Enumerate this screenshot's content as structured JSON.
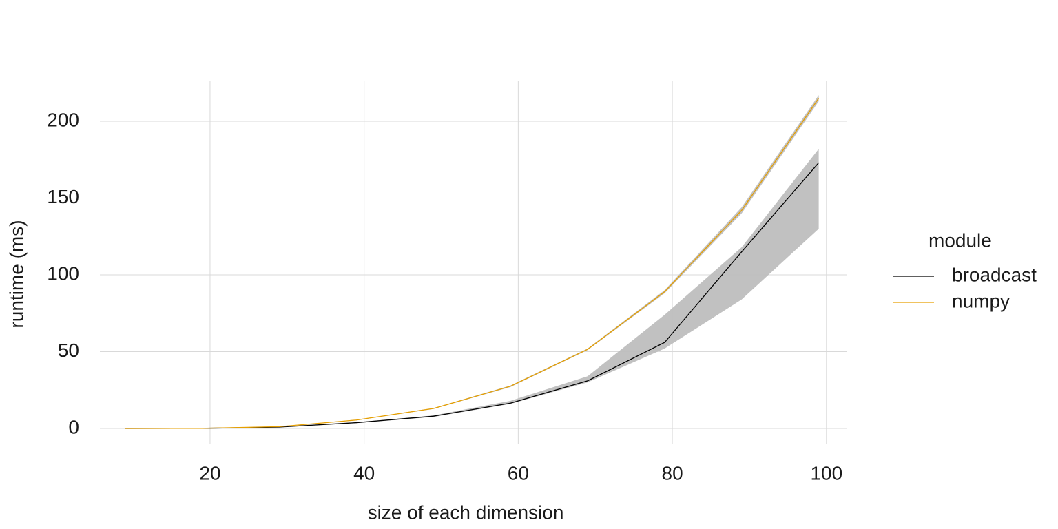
{
  "chart_data": {
    "type": "line",
    "x_label": "size of each dimension",
    "y_label": "runtime (ms)",
    "legend_title": "module",
    "legend_position": "right",
    "grid": true,
    "x": [
      9,
      19,
      29,
      39,
      49,
      59,
      69,
      79,
      89,
      99
    ],
    "xlim": [
      5.7,
      102.7
    ],
    "xticks": [
      20,
      40,
      60,
      80,
      100
    ],
    "ylim": [
      -10.3,
      226
    ],
    "yticks": [
      0,
      50,
      100,
      150,
      200
    ],
    "ribbon_color": "#bebebe",
    "series": [
      {
        "name": "broadcast",
        "color": "#000000",
        "values": [
          0,
          0.1,
          0.9,
          3.8,
          8,
          16.5,
          31,
          56,
          115,
          173
        ],
        "lower": [
          0,
          0.1,
          0.8,
          3.5,
          7.5,
          16,
          30,
          52,
          84,
          130
        ],
        "upper": [
          0,
          0.1,
          1,
          4,
          8.5,
          18,
          34,
          74,
          118,
          182
        ]
      },
      {
        "name": "numpy",
        "color": "#e69f00",
        "values": [
          0,
          0.1,
          1.2,
          5.5,
          13,
          27.5,
          51.5,
          89,
          142,
          215
        ],
        "lower": [
          0,
          0.1,
          1.1,
          5.3,
          12.7,
          27,
          51,
          88,
          140,
          213
        ],
        "upper": [
          0,
          0.1,
          1.3,
          5.7,
          13.3,
          28,
          52,
          90,
          144,
          217
        ]
      }
    ]
  }
}
